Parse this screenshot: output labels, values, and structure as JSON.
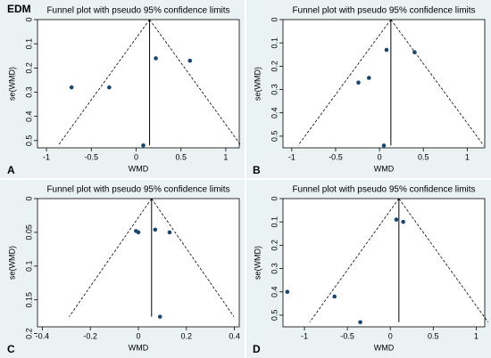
{
  "heading": "EDM",
  "chart_data": [
    {
      "type": "scatter",
      "panel": "A",
      "title": "Funnel plot with pseudo 95% confidence limits",
      "xlabel": "WMD",
      "ylabel": "se(WMD)",
      "y_inverted": true,
      "pooled": 0.15,
      "color": "#1a476f",
      "x": [
        0.22,
        0.6,
        -0.72,
        -0.3,
        0.08
      ],
      "values": [
        0.16,
        0.17,
        0.28,
        0.28,
        0.52
      ],
      "xlim": [
        -1.1,
        1.15
      ],
      "xticks": [
        -1,
        -0.5,
        0,
        0.5,
        1
      ],
      "ylim": [
        0,
        0.53
      ],
      "yticks": [
        0,
        0.1,
        0.2,
        0.3,
        0.4,
        0.5
      ]
    },
    {
      "type": "scatter",
      "panel": "B",
      "title": "Funnel plot with pseudo 95% confidence limits",
      "xlabel": "WMD",
      "ylabel": "se(WMD)",
      "y_inverted": true,
      "pooled": 0.13,
      "color": "#1a476f",
      "x": [
        0.08,
        0.4,
        -0.24,
        -0.12,
        0.05
      ],
      "values": [
        0.13,
        0.14,
        0.27,
        0.25,
        0.54
      ],
      "xlim": [
        -1.1,
        1.2
      ],
      "xticks": [
        -1,
        -0.5,
        0,
        0.5,
        1
      ],
      "ylim": [
        0,
        0.55
      ],
      "yticks": [
        0,
        0.1,
        0.2,
        0.3,
        0.4,
        0.5
      ]
    },
    {
      "type": "scatter",
      "panel": "C",
      "title": "Funnel plot with pseudo 95% confidence limits",
      "xlabel": "WMD",
      "ylabel": "se(WMD)",
      "y_inverted": true,
      "pooled": 0.055,
      "color": "#1a476f",
      "x": [
        -0.01,
        0.0,
        0.07,
        0.13,
        0.09
      ],
      "values": [
        0.048,
        0.05,
        0.046,
        0.05,
        0.175
      ],
      "xlim": [
        -0.42,
        0.42
      ],
      "xticks": [
        -0.4,
        -0.2,
        0,
        0.2,
        0.4
      ],
      "ylim": [
        0,
        0.19
      ],
      "yticks": [
        0,
        0.05,
        0.1,
        0.15,
        0.2
      ]
    },
    {
      "type": "scatter",
      "panel": "D",
      "title": "Funnel plot with pseudo 95% confidence limits",
      "xlabel": "WMD",
      "ylabel": "se(WMD)",
      "y_inverted": true,
      "pooled": 0.1,
      "color": "#1a476f",
      "x": [
        0.07,
        0.15,
        -1.2,
        -0.65,
        -0.35
      ],
      "values": [
        0.09,
        0.1,
        0.4,
        0.42,
        0.53
      ],
      "xlim": [
        -1.25,
        1.1
      ],
      "xticks": [
        -1,
        -0.5,
        0,
        0.5,
        1
      ],
      "ylim": [
        0,
        0.55
      ],
      "yticks": [
        0,
        0.1,
        0.2,
        0.3,
        0.4,
        0.5
      ]
    }
  ]
}
